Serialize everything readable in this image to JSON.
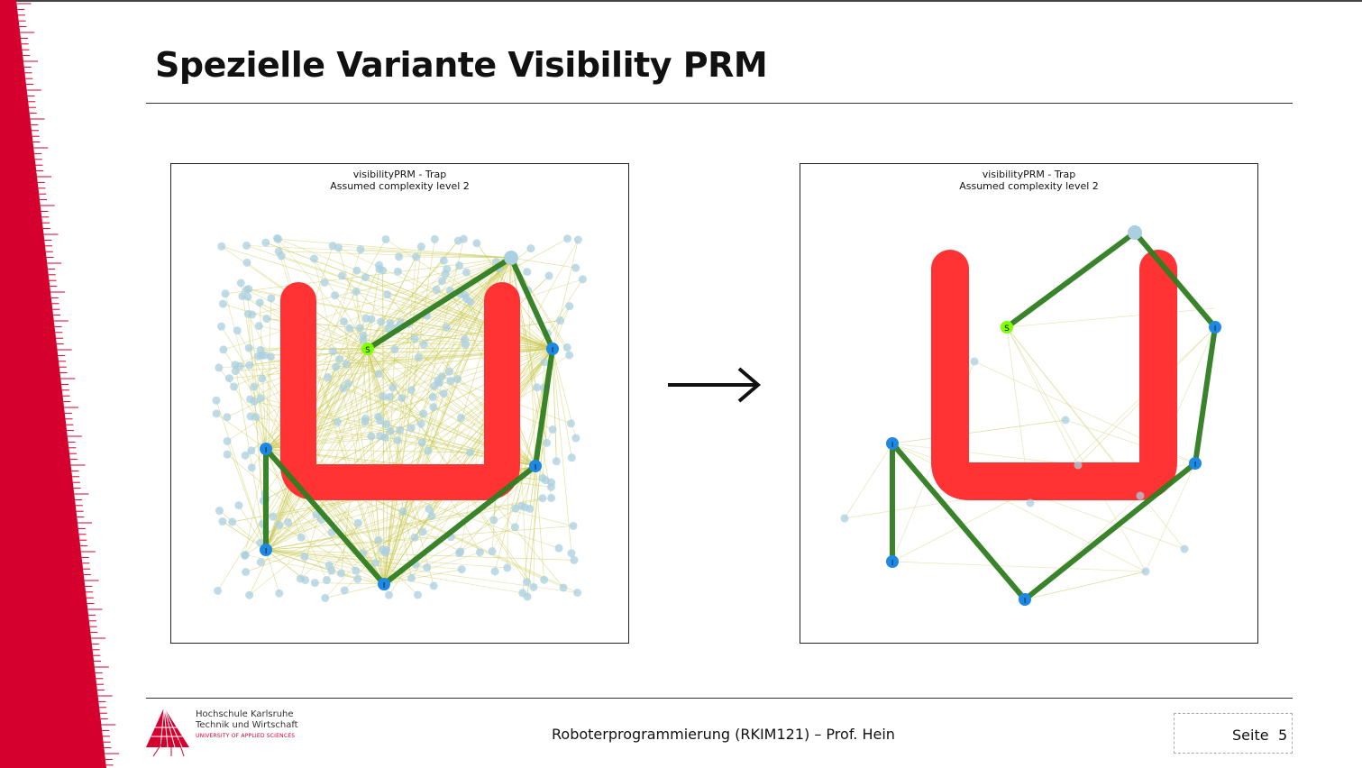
{
  "slide": {
    "title": "Spezielle Variante Visibility PRM",
    "footer": "Roboterprogrammierung (RKIM121) – Prof. Hein",
    "page_label": "Seite",
    "page_number": "5"
  },
  "logo": {
    "line1": "Hochschule Karlsruhe",
    "line2": "Technik und Wirtschaft",
    "line3": "UNIVERSITY OF APPLIED SCIENCES"
  },
  "plots": {
    "left": {
      "title_line1": "visibilityPRM - Trap",
      "title_line2": "Assumed complexity level 2",
      "start_label": "S",
      "node_label": "I"
    },
    "right": {
      "title_line1": "visibilityPRM - Trap",
      "title_line2": "Assumed complexity level 2",
      "start_label": "S",
      "node_label": "I"
    }
  },
  "colors": {
    "accent": "#d6002f",
    "obstacle": "#ff3333",
    "path": "#2e7d1f",
    "start_node": "#7fff00",
    "guard_node": "#1e88e5",
    "sample_node": "#a9cfe0",
    "edge": "#c8c850"
  }
}
